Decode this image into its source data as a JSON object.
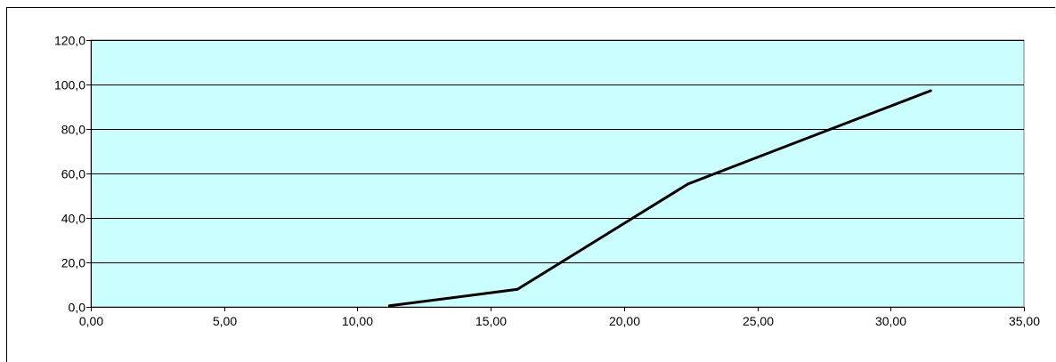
{
  "chart_data": {
    "type": "line",
    "title": "",
    "xlabel": "",
    "ylabel": "",
    "xlim": [
      0,
      35
    ],
    "ylim": [
      0,
      120
    ],
    "x_ticks": [
      "0,00",
      "5,00",
      "10,00",
      "15,00",
      "20,00",
      "25,00",
      "30,00",
      "35,00"
    ],
    "y_ticks": [
      "0,0",
      "20,0",
      "40,0",
      "60,0",
      "80,0",
      "100,0",
      "120,0"
    ],
    "grid": "horizontal",
    "legend": "none",
    "series": [
      {
        "x": [
          11.2,
          16.0,
          22.4,
          31.5
        ],
        "y": [
          0.5,
          7.9,
          55.3,
          97.2
        ]
      }
    ],
    "colors": {
      "plot_background": "#ccffff",
      "line": "#000000",
      "grid": "#000000"
    }
  }
}
